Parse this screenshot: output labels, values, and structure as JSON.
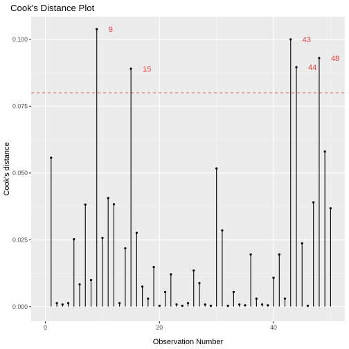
{
  "chart_data": {
    "type": "lollipop",
    "title": "Cook's Distance Plot",
    "xlabel": "Observation Number",
    "ylabel": "Cook's distance",
    "xlim": [
      -2.5,
      52.5
    ],
    "ylim": [
      -0.0055,
      0.1085
    ],
    "x_ticks": [
      0,
      20,
      40
    ],
    "x_tick_labels": [
      "0",
      "20",
      "40"
    ],
    "y_ticks": [
      0,
      0.025,
      0.05,
      0.075,
      0.1
    ],
    "y_tick_labels": [
      "0.000",
      "0.025",
      "0.050",
      "0.075",
      "0.100"
    ],
    "grid": true,
    "threshold": 0.08,
    "threshold_color": "#e06050",
    "label_color": "#e3403c",
    "x": [
      1,
      2,
      3,
      4,
      5,
      6,
      7,
      8,
      9,
      10,
      11,
      12,
      13,
      14,
      15,
      16,
      17,
      18,
      19,
      20,
      21,
      22,
      23,
      24,
      25,
      26,
      27,
      28,
      29,
      30,
      31,
      32,
      33,
      34,
      35,
      36,
      37,
      38,
      39,
      40,
      41,
      42,
      43,
      44,
      45,
      46,
      47,
      48,
      49,
      50
    ],
    "values": [
      0.0557,
      0.0013,
      0.0008,
      0.0013,
      0.0252,
      0.0083,
      0.0382,
      0.0099,
      0.1038,
      0.0257,
      0.0406,
      0.0383,
      0.0013,
      0.0218,
      0.089,
      0.0276,
      0.0075,
      0.003,
      0.0148,
      0.0003,
      0.0055,
      0.0121,
      0.0008,
      0.0003,
      0.0013,
      0.0135,
      0.0088,
      0.0008,
      0.0003,
      0.0517,
      0.0285,
      0.0003,
      0.0055,
      0.0008,
      0.0005,
      0.0195,
      0.003,
      0.0008,
      0.0005,
      0.0108,
      0.0195,
      0.003,
      0.1,
      0.0896,
      0.0237,
      0.0003,
      0.039,
      0.093,
      0.058,
      0.0368
    ],
    "annotations": [
      {
        "x": 9,
        "text": "9"
      },
      {
        "x": 15,
        "text": "15"
      },
      {
        "x": 43,
        "text": "43"
      },
      {
        "x": 44,
        "text": "44"
      },
      {
        "x": 48,
        "text": "48"
      }
    ]
  }
}
